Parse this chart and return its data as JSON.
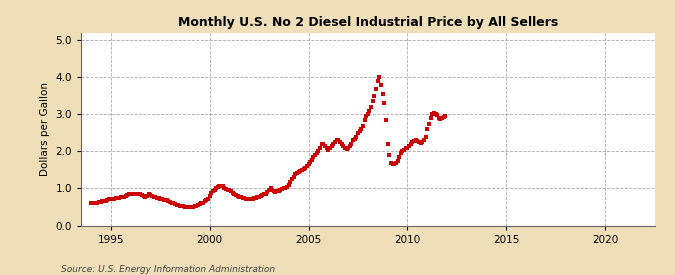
{
  "title": "Monthly U.S. No 2 Diesel Industrial Price by All Sellers",
  "ylabel": "Dollars per Gallon",
  "source": "Source: U.S. Energy Information Administration",
  "background_color": "#f0deb8",
  "plot_background_color": "#ffffff",
  "line_color": "#cc0000",
  "marker": "s",
  "marker_size": 5,
  "xlim": [
    1993.5,
    2022.5
  ],
  "ylim": [
    0.0,
    5.2
  ],
  "yticks": [
    0.0,
    1.0,
    2.0,
    3.0,
    4.0,
    5.0
  ],
  "xticks": [
    1995,
    2000,
    2005,
    2010,
    2015,
    2020
  ],
  "data": [
    [
      1994.0,
      0.62
    ],
    [
      1994.08,
      0.61
    ],
    [
      1994.17,
      0.6
    ],
    [
      1994.25,
      0.61
    ],
    [
      1994.33,
      0.62
    ],
    [
      1994.42,
      0.63
    ],
    [
      1994.5,
      0.64
    ],
    [
      1994.58,
      0.65
    ],
    [
      1994.67,
      0.66
    ],
    [
      1994.75,
      0.67
    ],
    [
      1994.83,
      0.7
    ],
    [
      1994.92,
      0.72
    ],
    [
      1995.0,
      0.72
    ],
    [
      1995.08,
      0.72
    ],
    [
      1995.17,
      0.72
    ],
    [
      1995.25,
      0.73
    ],
    [
      1995.33,
      0.74
    ],
    [
      1995.42,
      0.75
    ],
    [
      1995.5,
      0.76
    ],
    [
      1995.58,
      0.77
    ],
    [
      1995.67,
      0.78
    ],
    [
      1995.75,
      0.8
    ],
    [
      1995.83,
      0.82
    ],
    [
      1995.92,
      0.84
    ],
    [
      1996.0,
      0.84
    ],
    [
      1996.08,
      0.84
    ],
    [
      1996.17,
      0.84
    ],
    [
      1996.25,
      0.85
    ],
    [
      1996.33,
      0.86
    ],
    [
      1996.42,
      0.85
    ],
    [
      1996.5,
      0.84
    ],
    [
      1996.58,
      0.82
    ],
    [
      1996.67,
      0.8
    ],
    [
      1996.75,
      0.78
    ],
    [
      1996.83,
      0.8
    ],
    [
      1996.92,
      0.85
    ],
    [
      1997.0,
      0.82
    ],
    [
      1997.08,
      0.8
    ],
    [
      1997.17,
      0.78
    ],
    [
      1997.25,
      0.76
    ],
    [
      1997.33,
      0.74
    ],
    [
      1997.42,
      0.73
    ],
    [
      1997.5,
      0.72
    ],
    [
      1997.58,
      0.71
    ],
    [
      1997.67,
      0.7
    ],
    [
      1997.75,
      0.7
    ],
    [
      1997.83,
      0.68
    ],
    [
      1997.92,
      0.66
    ],
    [
      1998.0,
      0.64
    ],
    [
      1998.08,
      0.62
    ],
    [
      1998.17,
      0.6
    ],
    [
      1998.25,
      0.58
    ],
    [
      1998.33,
      0.56
    ],
    [
      1998.42,
      0.55
    ],
    [
      1998.5,
      0.54
    ],
    [
      1998.58,
      0.53
    ],
    [
      1998.67,
      0.52
    ],
    [
      1998.75,
      0.51
    ],
    [
      1998.83,
      0.5
    ],
    [
      1998.92,
      0.49
    ],
    [
      1999.0,
      0.49
    ],
    [
      1999.08,
      0.49
    ],
    [
      1999.17,
      0.5
    ],
    [
      1999.25,
      0.52
    ],
    [
      1999.33,
      0.54
    ],
    [
      1999.42,
      0.56
    ],
    [
      1999.5,
      0.58
    ],
    [
      1999.58,
      0.6
    ],
    [
      1999.67,
      0.62
    ],
    [
      1999.75,
      0.65
    ],
    [
      1999.83,
      0.68
    ],
    [
      1999.92,
      0.72
    ],
    [
      2000.0,
      0.8
    ],
    [
      2000.08,
      0.88
    ],
    [
      2000.17,
      0.92
    ],
    [
      2000.25,
      0.96
    ],
    [
      2000.33,
      1.0
    ],
    [
      2000.42,
      1.05
    ],
    [
      2000.5,
      1.08
    ],
    [
      2000.58,
      1.08
    ],
    [
      2000.67,
      1.06
    ],
    [
      2000.75,
      1.02
    ],
    [
      2000.83,
      0.98
    ],
    [
      2000.92,
      0.95
    ],
    [
      2001.0,
      0.95
    ],
    [
      2001.08,
      0.92
    ],
    [
      2001.17,
      0.88
    ],
    [
      2001.25,
      0.85
    ],
    [
      2001.33,
      0.82
    ],
    [
      2001.42,
      0.8
    ],
    [
      2001.5,
      0.78
    ],
    [
      2001.58,
      0.76
    ],
    [
      2001.67,
      0.74
    ],
    [
      2001.75,
      0.73
    ],
    [
      2001.83,
      0.72
    ],
    [
      2001.92,
      0.72
    ],
    [
      2002.0,
      0.72
    ],
    [
      2002.08,
      0.72
    ],
    [
      2002.17,
      0.72
    ],
    [
      2002.25,
      0.73
    ],
    [
      2002.33,
      0.74
    ],
    [
      2002.42,
      0.76
    ],
    [
      2002.5,
      0.78
    ],
    [
      2002.58,
      0.8
    ],
    [
      2002.67,
      0.82
    ],
    [
      2002.75,
      0.84
    ],
    [
      2002.83,
      0.86
    ],
    [
      2002.92,
      0.9
    ],
    [
      2003.0,
      0.96
    ],
    [
      2003.08,
      1.0
    ],
    [
      2003.17,
      0.96
    ],
    [
      2003.25,
      0.92
    ],
    [
      2003.33,
      0.9
    ],
    [
      2003.42,
      0.92
    ],
    [
      2003.5,
      0.94
    ],
    [
      2003.58,
      0.96
    ],
    [
      2003.67,
      0.98
    ],
    [
      2003.75,
      1.0
    ],
    [
      2003.83,
      1.02
    ],
    [
      2003.92,
      1.05
    ],
    [
      2004.0,
      1.1
    ],
    [
      2004.08,
      1.18
    ],
    [
      2004.17,
      1.25
    ],
    [
      2004.25,
      1.32
    ],
    [
      2004.33,
      1.38
    ],
    [
      2004.42,
      1.42
    ],
    [
      2004.5,
      1.45
    ],
    [
      2004.58,
      1.48
    ],
    [
      2004.67,
      1.5
    ],
    [
      2004.75,
      1.52
    ],
    [
      2004.83,
      1.55
    ],
    [
      2004.92,
      1.6
    ],
    [
      2005.0,
      1.65
    ],
    [
      2005.08,
      1.72
    ],
    [
      2005.17,
      1.78
    ],
    [
      2005.25,
      1.85
    ],
    [
      2005.33,
      1.9
    ],
    [
      2005.42,
      1.95
    ],
    [
      2005.5,
      2.0
    ],
    [
      2005.58,
      2.1
    ],
    [
      2005.67,
      2.2
    ],
    [
      2005.75,
      2.2
    ],
    [
      2005.83,
      2.15
    ],
    [
      2005.92,
      2.1
    ],
    [
      2006.0,
      2.05
    ],
    [
      2006.08,
      2.1
    ],
    [
      2006.17,
      2.15
    ],
    [
      2006.25,
      2.2
    ],
    [
      2006.33,
      2.25
    ],
    [
      2006.42,
      2.3
    ],
    [
      2006.5,
      2.3
    ],
    [
      2006.58,
      2.25
    ],
    [
      2006.67,
      2.2
    ],
    [
      2006.75,
      2.15
    ],
    [
      2006.83,
      2.1
    ],
    [
      2006.92,
      2.08
    ],
    [
      2007.0,
      2.1
    ],
    [
      2007.08,
      2.15
    ],
    [
      2007.17,
      2.2
    ],
    [
      2007.25,
      2.3
    ],
    [
      2007.33,
      2.35
    ],
    [
      2007.42,
      2.4
    ],
    [
      2007.5,
      2.5
    ],
    [
      2007.58,
      2.55
    ],
    [
      2007.67,
      2.6
    ],
    [
      2007.75,
      2.7
    ],
    [
      2007.83,
      2.85
    ],
    [
      2007.92,
      2.95
    ],
    [
      2008.0,
      3.0
    ],
    [
      2008.08,
      3.1
    ],
    [
      2008.17,
      3.2
    ],
    [
      2008.25,
      3.35
    ],
    [
      2008.33,
      3.5
    ],
    [
      2008.42,
      3.7
    ],
    [
      2008.5,
      3.9
    ],
    [
      2008.58,
      4.02
    ],
    [
      2008.67,
      3.8
    ],
    [
      2008.75,
      3.55
    ],
    [
      2008.83,
      3.3
    ],
    [
      2008.92,
      2.85
    ],
    [
      2009.0,
      2.2
    ],
    [
      2009.08,
      1.9
    ],
    [
      2009.17,
      1.7
    ],
    [
      2009.25,
      1.65
    ],
    [
      2009.33,
      1.65
    ],
    [
      2009.42,
      1.7
    ],
    [
      2009.5,
      1.75
    ],
    [
      2009.58,
      1.85
    ],
    [
      2009.67,
      1.95
    ],
    [
      2009.75,
      2.0
    ],
    [
      2009.83,
      2.05
    ],
    [
      2009.92,
      2.1
    ],
    [
      2010.0,
      2.1
    ],
    [
      2010.08,
      2.15
    ],
    [
      2010.17,
      2.2
    ],
    [
      2010.25,
      2.25
    ],
    [
      2010.33,
      2.28
    ],
    [
      2010.42,
      2.3
    ],
    [
      2010.5,
      2.28
    ],
    [
      2010.58,
      2.25
    ],
    [
      2010.67,
      2.22
    ],
    [
      2010.75,
      2.25
    ],
    [
      2010.83,
      2.3
    ],
    [
      2010.92,
      2.4
    ],
    [
      2011.0,
      2.6
    ],
    [
      2011.08,
      2.75
    ],
    [
      2011.17,
      2.9
    ],
    [
      2011.25,
      3.02
    ],
    [
      2011.33,
      3.05
    ],
    [
      2011.42,
      3.02
    ],
    [
      2011.5,
      2.98
    ],
    [
      2011.58,
      2.9
    ],
    [
      2011.67,
      2.88
    ],
    [
      2011.75,
      2.9
    ],
    [
      2011.83,
      2.92
    ],
    [
      2011.92,
      2.95
    ]
  ]
}
